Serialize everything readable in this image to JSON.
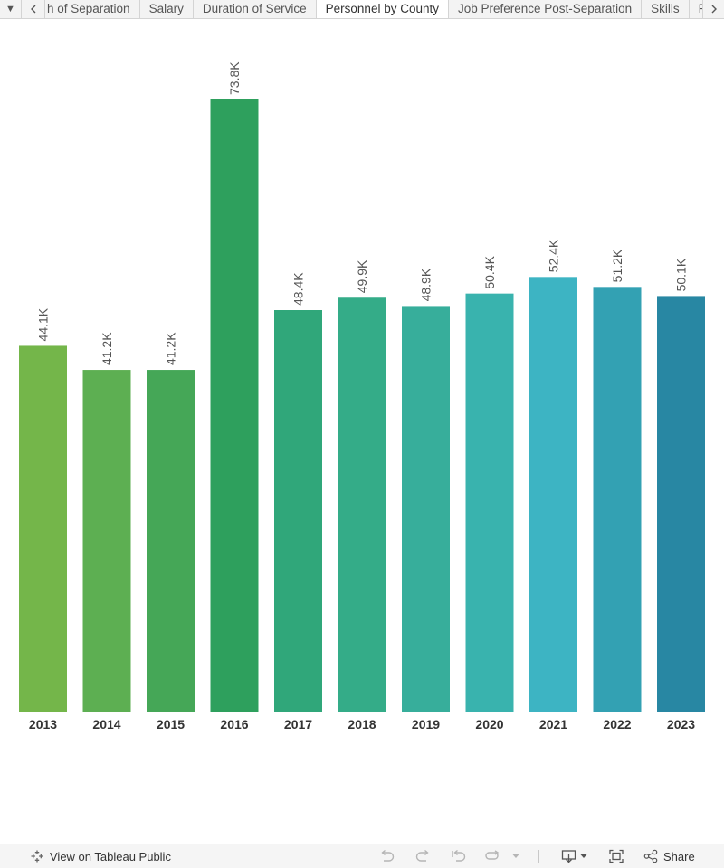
{
  "tabs": [
    {
      "label": "h of Separation"
    },
    {
      "label": "Salary"
    },
    {
      "label": "Duration of Service"
    },
    {
      "label": "Personnel by County",
      "active": true
    },
    {
      "label": "Job Preference Post-Separation"
    },
    {
      "label": "Skills"
    },
    {
      "label": "For"
    }
  ],
  "chart_data": {
    "type": "bar",
    "categories": [
      "2013",
      "2014",
      "2015",
      "2016",
      "2017",
      "2018",
      "2019",
      "2020",
      "2021",
      "2022",
      "2023"
    ],
    "values": [
      44.1,
      41.2,
      41.2,
      73.8,
      48.4,
      49.9,
      48.9,
      50.4,
      52.4,
      51.2,
      50.1
    ],
    "value_labels": [
      "44.1K",
      "41.2K",
      "41.2K",
      "73.8K",
      "48.4K",
      "49.9K",
      "48.9K",
      "50.4K",
      "52.4K",
      "51.2K",
      "50.1K"
    ],
    "colors": [
      "#74b64a",
      "#5daf52",
      "#45a757",
      "#2ea05d",
      "#30a77a",
      "#34ac88",
      "#37ae9b",
      "#39b3ae",
      "#3db4c3",
      "#33a1b3",
      "#2887a3"
    ],
    "unit": "K",
    "ylim": [
      0,
      73.8
    ],
    "grid": false,
    "title": "",
    "xlabel": "",
    "ylabel": ""
  },
  "toolbar": {
    "view_on_tableau_label": "View on Tableau Public",
    "share_label": "Share"
  }
}
